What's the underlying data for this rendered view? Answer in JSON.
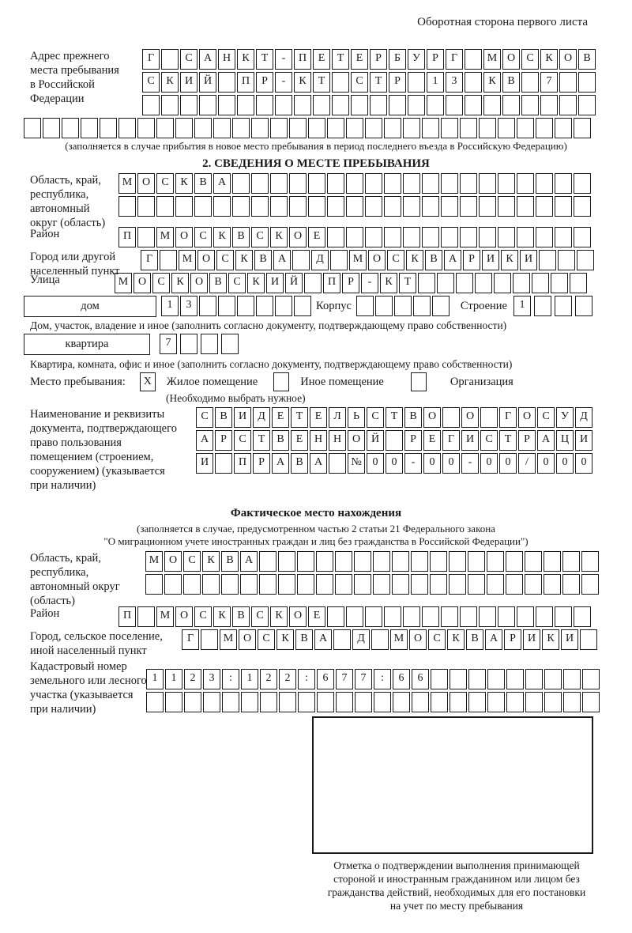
{
  "header": {
    "page_note": "Оборотная сторона первого листа"
  },
  "prev_address": {
    "label": "Адрес прежнего\nместа пребывания\nв Российской\nФедерации",
    "rows": [
      [
        "Г",
        "",
        "С",
        "А",
        "Н",
        "К",
        "Т",
        "-",
        "П",
        "Е",
        "Т",
        "Е",
        "Р",
        "Б",
        "У",
        "Р",
        "Г",
        "",
        "М",
        "О",
        "С",
        "К",
        "О",
        "В"
      ],
      [
        "С",
        "К",
        "И",
        "Й",
        "",
        "П",
        "Р",
        "-",
        "К",
        "Т",
        "",
        "С",
        "Т",
        "Р",
        "",
        "1",
        "3",
        "",
        "К",
        "В",
        "",
        "7",
        "",
        ""
      ],
      [
        "",
        "",
        "",
        "",
        "",
        "",
        "",
        "",
        "",
        "",
        "",
        "",
        "",
        "",
        "",
        "",
        "",
        "",
        "",
        "",
        "",
        "",
        "",
        ""
      ],
      [
        "",
        "",
        "",
        "",
        "",
        "",
        "",
        "",
        "",
        "",
        "",
        "",
        "",
        "",
        "",
        "",
        "",
        "",
        "",
        "",
        "",
        "",
        "",
        "",
        "",
        "",
        "",
        "",
        "",
        ""
      ]
    ],
    "note": "(заполняется в случае прибытия в новое место пребывания в период последнего въезда в Российскую Федерацию)"
  },
  "section2": {
    "title": "2. СВЕДЕНИЯ О МЕСТЕ ПРЕБЫВАНИЯ",
    "region": {
      "label": "Область, край,\nреспублика,\nавтономный\nокруг (область)",
      "rows": [
        [
          "М",
          "О",
          "С",
          "К",
          "В",
          "А",
          "",
          "",
          "",
          "",
          "",
          "",
          "",
          "",
          "",
          "",
          "",
          "",
          "",
          "",
          "",
          "",
          "",
          "",
          ""
        ],
        [
          "",
          "",
          "",
          "",
          "",
          "",
          "",
          "",
          "",
          "",
          "",
          "",
          "",
          "",
          "",
          "",
          "",
          "",
          "",
          "",
          "",
          "",
          "",
          "",
          ""
        ]
      ]
    },
    "district": {
      "label": "Район",
      "cells": [
        "П",
        "",
        "М",
        "О",
        "С",
        "К",
        "В",
        "С",
        "К",
        "О",
        "Е",
        "",
        "",
        "",
        "",
        "",
        "",
        "",
        "",
        "",
        "",
        "",
        "",
        "",
        ""
      ]
    },
    "city": {
      "label": "Город или другой\nнаселенный пункт",
      "cells": [
        "Г",
        "",
        "М",
        "О",
        "С",
        "К",
        "В",
        "А",
        "",
        "Д",
        "",
        "М",
        "О",
        "С",
        "К",
        "В",
        "А",
        "Р",
        "И",
        "К",
        "И",
        "",
        "",
        ""
      ]
    },
    "street": {
      "label": "Улица",
      "cells": [
        "М",
        "О",
        "С",
        "К",
        "О",
        "В",
        "С",
        "К",
        "И",
        "Й",
        "",
        "П",
        "Р",
        "-",
        "К",
        "Т",
        "",
        "",
        "",
        "",
        "",
        "",
        "",
        "",
        ""
      ]
    },
    "house": {
      "box_label": "дом",
      "cells": [
        "1",
        "3",
        "",
        "",
        "",
        "",
        "",
        ""
      ],
      "korpus_label": "Корпус",
      "korpus_cells": [
        "",
        "",
        "",
        "",
        ""
      ],
      "stroenie_label": "Строение",
      "stroenie_cells": [
        "1",
        "",
        "",
        ""
      ],
      "note": "Дом, участок, владение и иное (заполнить согласно документу, подтверждающему право собственности)"
    },
    "apartment": {
      "box_label": "квартира",
      "cells": [
        "7",
        "",
        "",
        ""
      ],
      "note": "Квартира, комната, офис и иное (заполнить согласно документу, подтверждающему право собственности)"
    },
    "stay": {
      "label": "Место пребывания:",
      "options": [
        {
          "label": "Жилое помещение",
          "mark": "X"
        },
        {
          "label": "Иное помещение",
          "mark": ""
        },
        {
          "label": "Организация",
          "mark": ""
        }
      ],
      "note": "(Необходимо выбрать нужное)"
    },
    "doc": {
      "label": "Наименование и реквизиты\nдокумента, подтверждающего\nправо пользования\nпомещением (строением,\nсооружением) (указывается\nпри наличии)",
      "rows": [
        [
          "С",
          "В",
          "И",
          "Д",
          "Е",
          "Т",
          "Е",
          "Л",
          "Ь",
          "С",
          "Т",
          "В",
          "О",
          "",
          "О",
          "",
          "Г",
          "О",
          "С",
          "У",
          "Д"
        ],
        [
          "А",
          "Р",
          "С",
          "Т",
          "В",
          "Е",
          "Н",
          "Н",
          "О",
          "Й",
          "",
          "Р",
          "Е",
          "Г",
          "И",
          "С",
          "Т",
          "Р",
          "А",
          "Ц",
          "И"
        ],
        [
          "И",
          "",
          "П",
          "Р",
          "А",
          "В",
          "А",
          "",
          "№",
          "0",
          "0",
          "-",
          "0",
          "0",
          "-",
          "0",
          "0",
          "/",
          "0",
          "0",
          "0"
        ]
      ]
    }
  },
  "fact": {
    "title": "Фактическое место нахождения",
    "note": [
      "(заполняется в случае, предусмотренном частью 2 статьи 21 Федерального закона",
      "\"О миграционном учете иностранных граждан и лиц без гражданства в Российской Федерации\")"
    ],
    "region": {
      "label": "Область, край,\nреспублика,\nавтономный округ\n(область)",
      "rows": [
        [
          "М",
          "О",
          "С",
          "К",
          "В",
          "А",
          "",
          "",
          "",
          "",
          "",
          "",
          "",
          "",
          "",
          "",
          "",
          "",
          "",
          "",
          "",
          "",
          "",
          ""
        ],
        [
          "",
          "",
          "",
          "",
          "",
          "",
          "",
          "",
          "",
          "",
          "",
          "",
          "",
          "",
          "",
          "",
          "",
          "",
          "",
          "",
          "",
          "",
          "",
          ""
        ]
      ]
    },
    "district": {
      "label": "Район",
      "cells": [
        "П",
        "",
        "М",
        "О",
        "С",
        "К",
        "В",
        "С",
        "К",
        "О",
        "Е",
        "",
        "",
        "",
        "",
        "",
        "",
        "",
        "",
        "",
        "",
        "",
        "",
        "",
        ""
      ]
    },
    "city": {
      "label": "Город, сельское поселение,\nиной населенный пункт",
      "cells": [
        "Г",
        "",
        "М",
        "О",
        "С",
        "К",
        "В",
        "А",
        "",
        "Д",
        "",
        "М",
        "О",
        "С",
        "К",
        "В",
        "А",
        "Р",
        "И",
        "К",
        "И",
        ""
      ]
    },
    "cadastre": {
      "label": "Кадастровый номер\nземельного или лесного\nучастка (указывается\nпри наличии)",
      "rows": [
        [
          "1",
          "1",
          "2",
          "3",
          ":",
          "1",
          "2",
          "2",
          ":",
          "6",
          "7",
          "7",
          ":",
          "6",
          "6",
          "",
          "",
          "",
          "",
          "",
          "",
          "",
          "",
          ""
        ],
        [
          "",
          "",
          "",
          "",
          "",
          "",
          "",
          "",
          "",
          "",
          "",
          "",
          "",
          "",
          "",
          "",
          "",
          "",
          "",
          "",
          "",
          "",
          "",
          ""
        ]
      ]
    },
    "stamp_caption": "Отметка о подтверждении выполнения принимающей\nстороной и иностранным гражданином или лицом без\nгражданства действий, необходимых для его постановки\nна учет по месту пребывания"
  }
}
